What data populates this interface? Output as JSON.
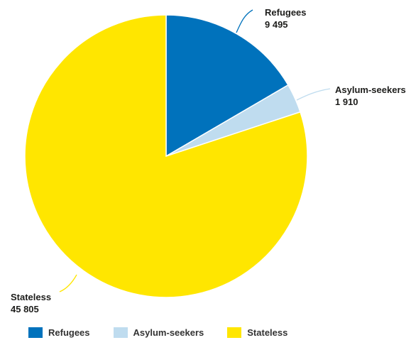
{
  "chart_data": {
    "type": "pie",
    "title": "",
    "slices": [
      {
        "name": "Refugees",
        "value": 9495,
        "value_label": "9 495",
        "color": "#0072bc"
      },
      {
        "name": "Asylum-seekers",
        "value": 1910,
        "value_label": "1 910",
        "color": "#bfdcef"
      },
      {
        "name": "Stateless",
        "value": 45805,
        "value_label": "45 805",
        "color": "#ffe600"
      }
    ],
    "legend": {
      "placement": "bottom-left",
      "items": [
        "Refugees",
        "Asylum-seekers",
        "Stateless"
      ]
    }
  }
}
